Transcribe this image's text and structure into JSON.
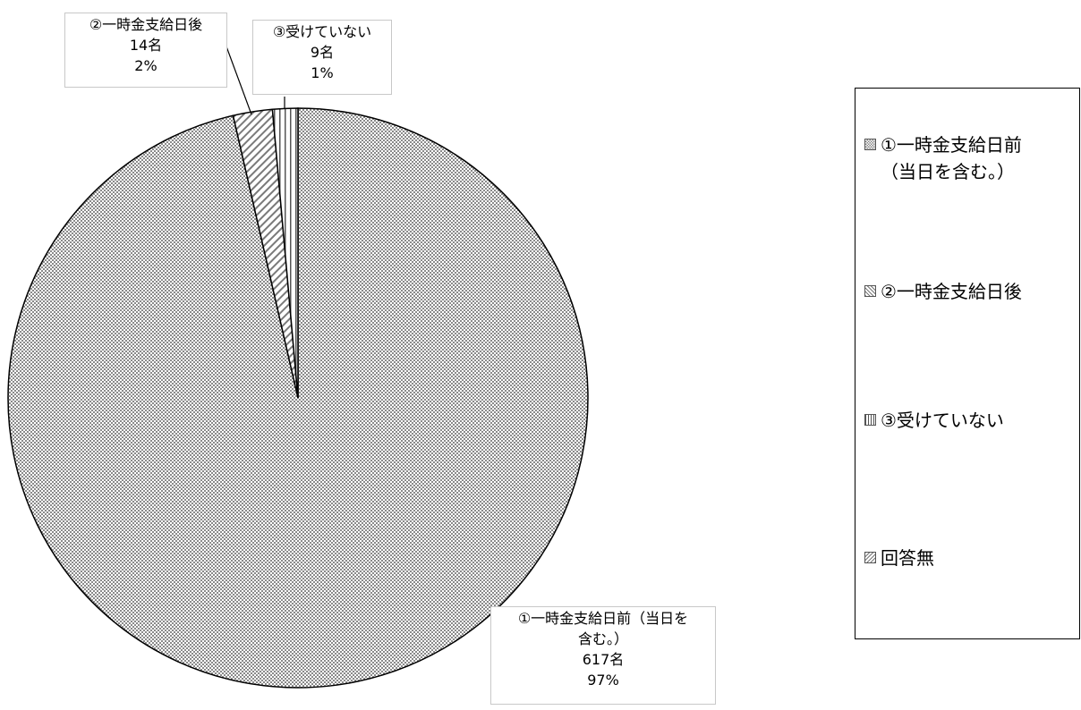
{
  "chart_data": {
    "type": "pie",
    "slices": [
      {
        "name": "①一時金支給日前（当日を含む。）",
        "count": 617,
        "percent": 97,
        "label_lines": [
          "①一時金支給日前（当日を",
          "含む。）",
          "617名",
          "97%"
        ]
      },
      {
        "name": "②一時金支給日後",
        "count": 14,
        "percent": 2,
        "label_lines": [
          "②一時金支給日後",
          "14名",
          "2%"
        ]
      },
      {
        "name": "③受けていない",
        "count": 9,
        "percent": 1,
        "label_lines": [
          "③受けていない",
          "9名",
          "1%"
        ]
      },
      {
        "name": "回答無",
        "count": null,
        "percent": null,
        "label_lines": []
      }
    ],
    "legend": {
      "position": "right",
      "items": [
        {
          "lines": [
            "①一時金支給日前",
            "（当日を含む。）"
          ],
          "pattern": "dots"
        },
        {
          "lines": [
            "②一時金支給日後"
          ],
          "pattern": "diag"
        },
        {
          "lines": [
            "③受けていない"
          ],
          "pattern": "vert"
        },
        {
          "lines": [
            "回答無"
          ],
          "pattern": "diag2"
        }
      ]
    }
  }
}
